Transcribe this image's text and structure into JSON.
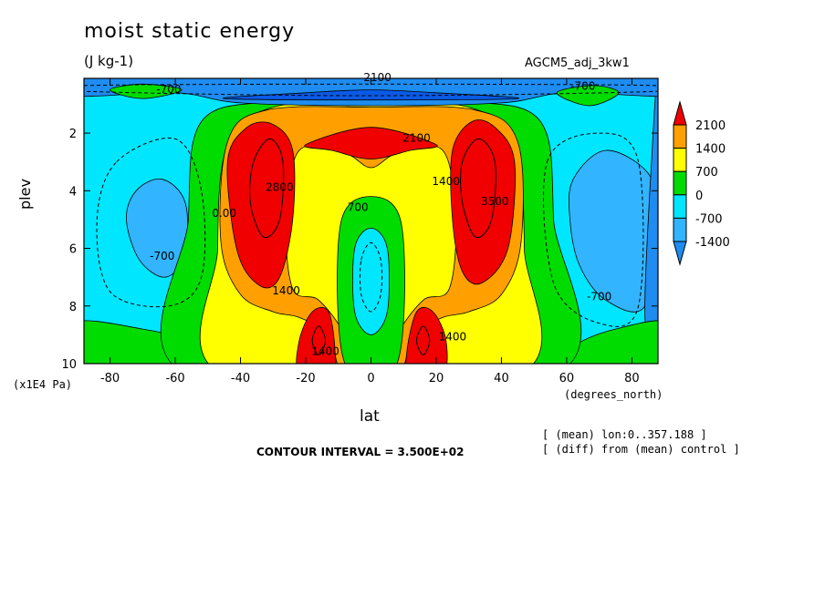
{
  "title": "moist static energy",
  "units": "(J kg-1)",
  "dataset": "AGCM5_adj_3kw1",
  "contour_interval": "CONTOUR INTERVAL = 3.500E+02",
  "notes": [
    "[ (mean) lon:0..357.188 ]",
    "[ (diff) from (mean) control ]"
  ],
  "colors": {
    "c_lt_m1400": "#1e8cf0",
    "c_m1400_m700": "#32b4ff",
    "c_m700_0": "#00e6ff",
    "c_0_700": "#00dc00",
    "c_700_1400": "#ffff00",
    "c_1400_2100": "#ffa000",
    "c_gt_2100": "#f00000",
    "c_strong_neg": "#0a5ae6"
  },
  "chart_data": {
    "type": "contour",
    "title": "moist static energy",
    "units": "(J kg-1)",
    "xlabel": "lat",
    "x_units": "(degrees_north)",
    "ylabel": "plev",
    "y_units": "(x1E4 Pa)",
    "xlim": [
      -88,
      88
    ],
    "ylim": [
      10,
      0.1
    ],
    "x_ticks": [
      "-80",
      "-60",
      "-40",
      "-20",
      "0",
      "20",
      "40",
      "60",
      "80"
    ],
    "y_ticks": [
      "2",
      "4",
      "6",
      "8",
      "10"
    ],
    "colorbar": {
      "levels": [
        "2100",
        "1400",
        "700",
        "0",
        "-700",
        "-1400"
      ],
      "bins": [
        {
          "range": ">2100",
          "color": "#f00000"
        },
        {
          "range": "1400..2100",
          "color": "#ffa000"
        },
        {
          "range": "700..1400",
          "color": "#ffff00"
        },
        {
          "range": "0..700",
          "color": "#00dc00"
        },
        {
          "range": "-700..0",
          "color": "#00e6ff"
        },
        {
          "range": "-1400..-700",
          "color": "#32b4ff"
        },
        {
          "range": "<-1400",
          "color": "#1e8cf0"
        }
      ]
    },
    "contour_interval": 350,
    "contour_labels": [
      {
        "text": "-700",
        "lat": -62,
        "plev": 0.6
      },
      {
        "text": "2100",
        "lat": 2,
        "plev": 0.2
      },
      {
        "text": "-700",
        "lat": 65,
        "plev": 0.5
      },
      {
        "text": "2100",
        "lat": 14,
        "plev": 2.3
      },
      {
        "text": "1400",
        "lat": 23,
        "plev": 3.8
      },
      {
        "text": "700",
        "lat": -4,
        "plev": 4.7
      },
      {
        "text": "2800",
        "lat": -28,
        "plev": 4.0
      },
      {
        "text": "1400",
        "lat": -26,
        "plev": 7.6
      },
      {
        "text": "-700",
        "lat": -64,
        "plev": 6.4
      },
      {
        "text": "-700",
        "lat": 70,
        "plev": 7.8
      },
      {
        "text": "3500",
        "lat": 38,
        "plev": 4.5
      },
      {
        "text": "1400",
        "lat": -14,
        "plev": 9.7
      },
      {
        "text": "1400",
        "lat": 25,
        "plev": 9.2
      },
      {
        "text": "0.00",
        "lat": -45,
        "plev": 4.9
      }
    ],
    "features": [
      {
        "name": "upper-level negative anomalies",
        "lat_range": [
          -88,
          88
        ],
        "plev_range": [
          0.1,
          1.2
        ],
        "value": "< -1400"
      },
      {
        "name": "southern subtropical upper maximum",
        "lat": -33,
        "plev": 4,
        "value": "> 2100"
      },
      {
        "name": "northern subtropical upper maximum",
        "lat": 33,
        "plev": 4,
        "value": "> 2100"
      },
      {
        "name": "equatorial upper maximum",
        "lat": 0,
        "plev": 2.2,
        "value": "> 2100"
      },
      {
        "name": "southern low-level maximum",
        "lat": -17,
        "plev": 9,
        "value": "> 2100"
      },
      {
        "name": "northern low-level maximum",
        "lat": 17,
        "plev": 9,
        "value": "> 2100"
      },
      {
        "name": "equatorial mid-level minimum",
        "lat": 0,
        "plev": 6.5,
        "value": "-700..0"
      },
      {
        "name": "southern extratropical minimum",
        "lat": -66,
        "plev": 5,
        "value": "-1400..-700"
      },
      {
        "name": "northern extratropical minimum",
        "lat": 68,
        "plev": 5,
        "value": "-1400..-700"
      }
    ]
  }
}
